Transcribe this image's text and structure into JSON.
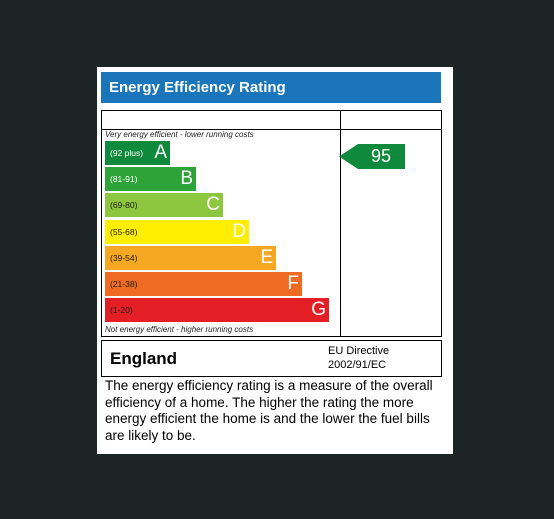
{
  "title": "Energy Efficiency Rating",
  "notes": {
    "top": "Very energy efficient - lower running costs",
    "bottom": "Not energy efficient - higher running costs"
  },
  "bands": [
    {
      "letter": "A",
      "range": "(92 plus)",
      "color": "#0f8a3c"
    },
    {
      "letter": "B",
      "range": "(81-91)",
      "color": "#2ea338"
    },
    {
      "letter": "C",
      "range": "(69-80)",
      "color": "#8dc63f"
    },
    {
      "letter": "D",
      "range": "(55-68)",
      "color": "#ffee00"
    },
    {
      "letter": "E",
      "range": "(39-54)",
      "color": "#f7a823"
    },
    {
      "letter": "F",
      "range": "(21-38)",
      "color": "#ef6a22"
    },
    {
      "letter": "G",
      "range": "(1-20)",
      "color": "#e31e25"
    }
  ],
  "current_rating": {
    "value": "95",
    "color": "#0f8a3c"
  },
  "footer": {
    "country": "England",
    "directive_line1": "EU Directive",
    "directive_line2": "2002/91/EC"
  },
  "description": "The energy efficiency rating is a measure of the overall efficiency of a home. The higher the rating the more energy efficient the home is and the lower the fuel bills are likely to be."
}
